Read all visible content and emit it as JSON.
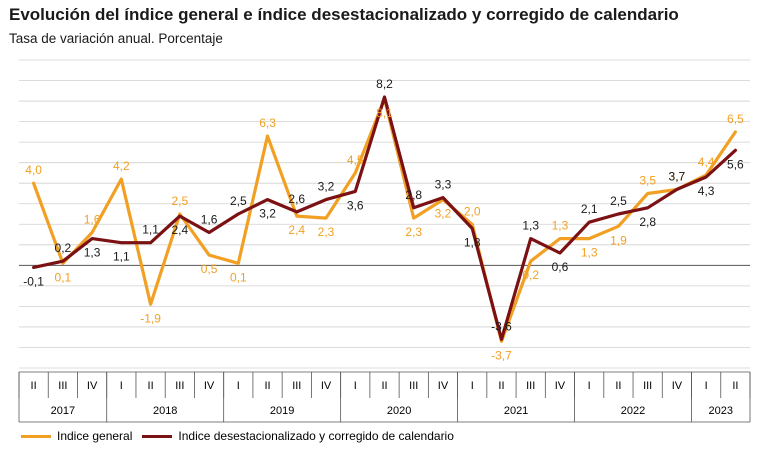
{
  "title": "Evolución del índice general e índice desestacionalizado y corregido de calendario",
  "subtitle": "Tasa de variación anual. Porcentaje",
  "colors": {
    "general": "#f2a023",
    "deseasonal": "#7b1113",
    "grid": "#d0d0d0",
    "axis": "#555555"
  },
  "chart_data": {
    "type": "line",
    "quarters": [
      "II",
      "III",
      "IV",
      "I",
      "II",
      "III",
      "IV",
      "I",
      "II",
      "III",
      "IV",
      "I",
      "II",
      "III",
      "IV",
      "I",
      "II",
      "III",
      "IV",
      "I",
      "II",
      "III",
      "IV",
      "I",
      "II"
    ],
    "years": [
      {
        "label": "2017",
        "span": 3
      },
      {
        "label": "2018",
        "span": 4
      },
      {
        "label": "2019",
        "span": 4
      },
      {
        "label": "2020",
        "span": 4
      },
      {
        "label": "2021",
        "span": 4
      },
      {
        "label": "2022",
        "span": 4
      },
      {
        "label": "2023",
        "span": 2
      }
    ],
    "ylim": [
      -5,
      10
    ],
    "grid": true,
    "legend_position": "bottom",
    "series": [
      {
        "name": "Indice general",
        "color_key": "general",
        "values": [
          4.0,
          0.1,
          1.6,
          4.2,
          -1.9,
          2.5,
          0.5,
          0.1,
          6.3,
          2.4,
          2.3,
          4.5,
          8.1,
          2.3,
          3.2,
          2.0,
          -3.7,
          0.2,
          1.3,
          1.3,
          1.9,
          3.5,
          3.7,
          4.4,
          6.5
        ],
        "labels": [
          "4,0",
          "0,1",
          "1,6",
          "4,2",
          "-1,9",
          "2,5",
          "0,5",
          "0,1",
          "6,3",
          "2,4",
          "2,3",
          "4,5",
          "8,1",
          "2,3",
          "3,2",
          "2,0",
          "-3,7",
          "0,2",
          "1,3",
          "1,3",
          "1,9",
          "3,5",
          "3,7",
          "4,4",
          "6,5"
        ]
      },
      {
        "name": "Indice desestacionalizado y corregido de calendario",
        "color_key": "deseasonal",
        "values": [
          -0.1,
          0.2,
          1.3,
          1.1,
          1.1,
          2.4,
          1.6,
          2.5,
          3.2,
          2.6,
          3.2,
          3.6,
          8.2,
          2.8,
          3.3,
          1.8,
          -3.6,
          1.3,
          0.6,
          2.1,
          2.5,
          2.8,
          3.7,
          4.3,
          5.6
        ],
        "labels": [
          "-0,1",
          "0,2",
          "1,3",
          "1,1",
          "1,1",
          "2,4",
          "1,6",
          "2,5",
          "3,2",
          "2,6",
          "3,2",
          "3,6",
          "8,2",
          "2,8",
          "3,3",
          "1,8",
          "-3,6",
          "1,3",
          "0,6",
          "2,1",
          "2,5",
          "2,8",
          "3,7",
          "4,3",
          "5,6"
        ]
      }
    ]
  }
}
